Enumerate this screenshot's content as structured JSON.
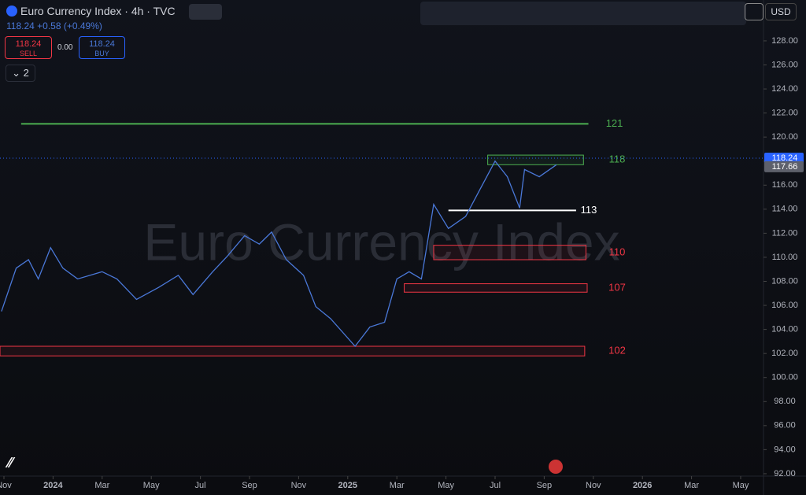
{
  "header": {
    "symbol": "Euro Currency Index · 4h · TVC",
    "last": "118.24",
    "change": "+0.58 (+0.49%)",
    "sell_price": "118.24",
    "sell": "SELL",
    "spread": "0.00",
    "buy_price": "118.24",
    "buy": "BUY",
    "indicators": "2",
    "currency": "USD"
  },
  "chart_data": {
    "type": "line",
    "watermark": "Euro Currency Index",
    "color": "#4a78d8",
    "x": [
      -0.1,
      0.5,
      1.0,
      1.4,
      1.9,
      2.4,
      3.0,
      4.0,
      4.6,
      5.4,
      6.3,
      7.1,
      7.7,
      8.5,
      9.1,
      9.8,
      10.4,
      10.9,
      11.5,
      12.2,
      12.7,
      13.3,
      14.3,
      14.9,
      15.5,
      16.0,
      16.5,
      17.0,
      17.5,
      18.1,
      18.8,
      19.4,
      20.0,
      20.5,
      21.0,
      21.2,
      21.8,
      22.5
    ],
    "values": [
      105.5,
      109.1,
      109.8,
      108.2,
      110.8,
      109.1,
      108.2,
      108.8,
      108.2,
      106.5,
      107.5,
      108.5,
      106.9,
      108.8,
      110.1,
      111.8,
      111.1,
      112.1,
      109.8,
      108.5,
      105.9,
      104.9,
      102.6,
      104.2,
      104.6,
      108.2,
      108.8,
      108.2,
      114.4,
      112.4,
      113.4,
      115.7,
      118.0,
      116.7,
      114.1,
      117.3,
      116.7,
      117.7
    ],
    "xlim": [
      -0.16,
      30.93
    ],
    "ylim": [
      131.4,
      91.8
    ],
    "xticks": [
      {
        "value": 0,
        "label": "Nov"
      },
      {
        "value": 2,
        "label": "2024"
      },
      {
        "value": 4,
        "label": "Mar"
      },
      {
        "value": 6,
        "label": "May"
      },
      {
        "value": 8,
        "label": "Jul"
      },
      {
        "value": 10,
        "label": "Sep"
      },
      {
        "value": 12,
        "label": "Nov"
      },
      {
        "value": 14,
        "label": "2025"
      },
      {
        "value": 16,
        "label": "Mar"
      },
      {
        "value": 18,
        "label": "May"
      },
      {
        "value": 20,
        "label": "Jul"
      },
      {
        "value": 22,
        "label": "Sep"
      },
      {
        "value": 24,
        "label": "Nov"
      },
      {
        "value": 26,
        "label": "2026"
      },
      {
        "value": 28,
        "label": "Mar"
      },
      {
        "value": 30,
        "label": "May"
      }
    ],
    "yticks": [
      {
        "value": 92,
        "label": "92.00"
      },
      {
        "value": 94,
        "label": "94.00"
      },
      {
        "value": 96,
        "label": "96.00"
      },
      {
        "value": 98,
        "label": "98.00"
      },
      {
        "value": 100,
        "label": "100.00"
      },
      {
        "value": 102,
        "label": "102.00"
      },
      {
        "value": 104,
        "label": "104.00"
      },
      {
        "value": 106,
        "label": "106.00"
      },
      {
        "value": 108,
        "label": "108.00"
      },
      {
        "value": 110,
        "label": "110.00"
      },
      {
        "value": 112,
        "label": "112.00"
      },
      {
        "value": 114,
        "label": "114.00"
      },
      {
        "value": 116,
        "label": "116.00"
      },
      {
        "value": 118,
        "label": "118.00"
      },
      {
        "value": 120,
        "label": "120.00"
      },
      {
        "value": 122,
        "label": "122.00"
      },
      {
        "value": 124,
        "label": "124.00"
      },
      {
        "value": 126,
        "label": "126.00"
      },
      {
        "value": 128,
        "label": "128.00"
      }
    ],
    "price_tags": [
      {
        "value": 118.24,
        "label": "118.24",
        "color": "#2962ff"
      },
      {
        "value": 117.66,
        "label": "117.66",
        "color": "#5d606b"
      }
    ],
    "levels": [
      {
        "label": "121",
        "kind": "line",
        "color": "#4caf50",
        "x": [
          0.7,
          23.8
        ],
        "y": [
          121.1
        ]
      },
      {
        "label": "118",
        "kind": "box",
        "color": "#4caf50",
        "x": [
          19.7,
          23.6
        ],
        "y": [
          118.5,
          117.7
        ]
      },
      {
        "label": "113",
        "kind": "line",
        "color": "#ffffff",
        "x": [
          18.1,
          23.3
        ],
        "y": [
          113.9
        ]
      },
      {
        "label": "110",
        "kind": "box",
        "color": "#f23645",
        "x": [
          17.5,
          23.7
        ],
        "y": [
          111.0,
          109.8
        ]
      },
      {
        "label": "107",
        "kind": "box",
        "color": "#f23645",
        "x": [
          16.3,
          23.75
        ],
        "y": [
          107.8,
          107.1
        ]
      },
      {
        "label": "102",
        "kind": "box",
        "color": "#f23645",
        "x": [
          -0.16,
          23.65
        ],
        "y": [
          102.6,
          101.8
        ]
      }
    ]
  }
}
